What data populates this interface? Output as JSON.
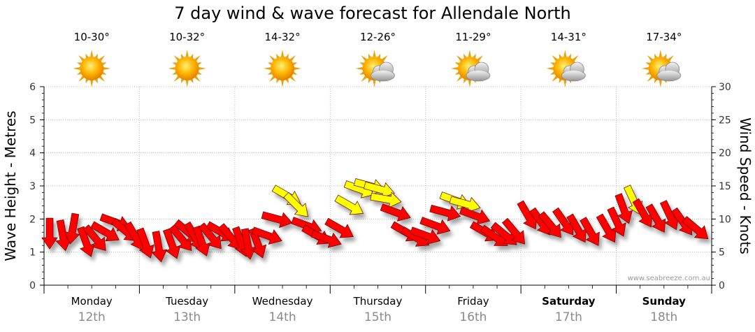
{
  "title": "7 day wind & wave forecast for Allendale North",
  "credit": "www.seabreeze.com.au",
  "days": [
    {
      "day": "Monday",
      "date": "12th",
      "temp": "10-30°",
      "icon": "sun-icon",
      "bold": false
    },
    {
      "day": "Tuesday",
      "date": "13th",
      "temp": "10-32°",
      "icon": "sun-icon",
      "bold": false
    },
    {
      "day": "Wednesday",
      "date": "14th",
      "temp": "14-32°",
      "icon": "sun-icon",
      "bold": false
    },
    {
      "day": "Thursday",
      "date": "15th",
      "temp": "12-26°",
      "icon": "sun-cloud-icon",
      "bold": false
    },
    {
      "day": "Friday",
      "date": "16th",
      "temp": "11-29°",
      "icon": "sun-cloud-icon",
      "bold": false
    },
    {
      "day": "Saturday",
      "date": "17th",
      "temp": "14-31°",
      "icon": "sun-cloud-icon",
      "bold": true
    },
    {
      "day": "Sunday",
      "date": "18th",
      "temp": "17-34°",
      "icon": "sun-cloud-icon",
      "bold": true
    }
  ],
  "colors": {
    "wind_arrow": "#ff0000",
    "wind_arrow_strong": "#ffff00",
    "arrow_outline": "#660000",
    "grid": "#bbbbbb"
  },
  "chart_data": {
    "type": "line",
    "title": "7 day wind & wave forecast for Allendale North",
    "ylabel_left": "Wave Height - Metres",
    "ylabel_right": "Wind Speed - Knots",
    "y_left_range": [
      0,
      6
    ],
    "y_left_ticks": [
      0,
      1,
      2,
      3,
      4,
      5,
      6
    ],
    "y_right_range": [
      0,
      30
    ],
    "y_right_ticks": [
      0,
      5,
      10,
      15,
      20,
      25,
      30
    ],
    "grid": true,
    "x_categories": [
      "Monday 12th",
      "Tuesday 13th",
      "Wednesday 14th",
      "Thursday 15th",
      "Friday 16th",
      "Saturday 17th",
      "Sunday 18th"
    ],
    "wind_series": {
      "name": "Wind Speed",
      "unit": "knots",
      "strong_threshold": 12,
      "points": [
        [
          0.0,
          7.8,
          270
        ],
        [
          0.2,
          7.5,
          260
        ],
        [
          0.35,
          8.5,
          280
        ],
        [
          0.55,
          6.5,
          250
        ],
        [
          0.7,
          7.0,
          230
        ],
        [
          0.85,
          8.0,
          210
        ],
        [
          1.0,
          9.5,
          200
        ],
        [
          1.15,
          8.2,
          220
        ],
        [
          1.3,
          7.3,
          240
        ],
        [
          1.45,
          6.3,
          250
        ],
        [
          1.65,
          5.8,
          260
        ],
        [
          1.85,
          6.2,
          250
        ],
        [
          2.0,
          7.0,
          230
        ],
        [
          2.1,
          8.0,
          220
        ],
        [
          2.2,
          7.3,
          240
        ],
        [
          2.3,
          6.6,
          250
        ],
        [
          2.45,
          7.3,
          230
        ],
        [
          2.6,
          8.0,
          210
        ],
        [
          2.75,
          7.2,
          230
        ],
        [
          2.9,
          6.5,
          250
        ],
        [
          3.0,
          6.2,
          260
        ],
        [
          3.15,
          6.3,
          250
        ],
        [
          3.3,
          7.5,
          200
        ],
        [
          3.45,
          10.0,
          195
        ],
        [
          3.6,
          13.5,
          210
        ],
        [
          3.75,
          12.0,
          225
        ],
        [
          3.9,
          9.0,
          200
        ],
        [
          4.05,
          7.5,
          210
        ],
        [
          4.2,
          7.0,
          200
        ],
        [
          4.4,
          8.5,
          210
        ],
        [
          4.55,
          12.0,
          210
        ],
        [
          4.7,
          14.5,
          200
        ],
        [
          4.85,
          15.0,
          195
        ],
        [
          5.0,
          14.5,
          195
        ],
        [
          5.1,
          13.0,
          190
        ],
        [
          5.25,
          11.0,
          200
        ],
        [
          5.4,
          8.0,
          210
        ],
        [
          5.55,
          7.2,
          210
        ],
        [
          5.7,
          7.5,
          200
        ],
        [
          5.85,
          9.0,
          200
        ],
        [
          6.0,
          11.0,
          195
        ],
        [
          6.15,
          12.8,
          200
        ],
        [
          6.3,
          12.3,
          195
        ],
        [
          6.45,
          10.5,
          200
        ],
        [
          6.6,
          8.0,
          210
        ],
        [
          6.75,
          7.3,
          215
        ],
        [
          6.9,
          7.6,
          220
        ],
        [
          7.05,
          8.0,
          230
        ],
        [
          7.25,
          10.5,
          240
        ],
        [
          7.45,
          9.5,
          235
        ],
        [
          7.6,
          9.0,
          230
        ],
        [
          7.8,
          9.5,
          235
        ],
        [
          8.0,
          8.5,
          240
        ],
        [
          8.2,
          8.0,
          240
        ],
        [
          8.45,
          8.5,
          240
        ],
        [
          8.6,
          9.5,
          245
        ],
        [
          8.7,
          11.5,
          250
        ],
        [
          8.85,
          12.8,
          245
        ],
        [
          9.0,
          10.8,
          240
        ],
        [
          9.2,
          10.0,
          240
        ],
        [
          9.4,
          10.5,
          245
        ],
        [
          9.6,
          9.5,
          235
        ],
        [
          9.8,
          8.5,
          220
        ]
      ]
    }
  }
}
